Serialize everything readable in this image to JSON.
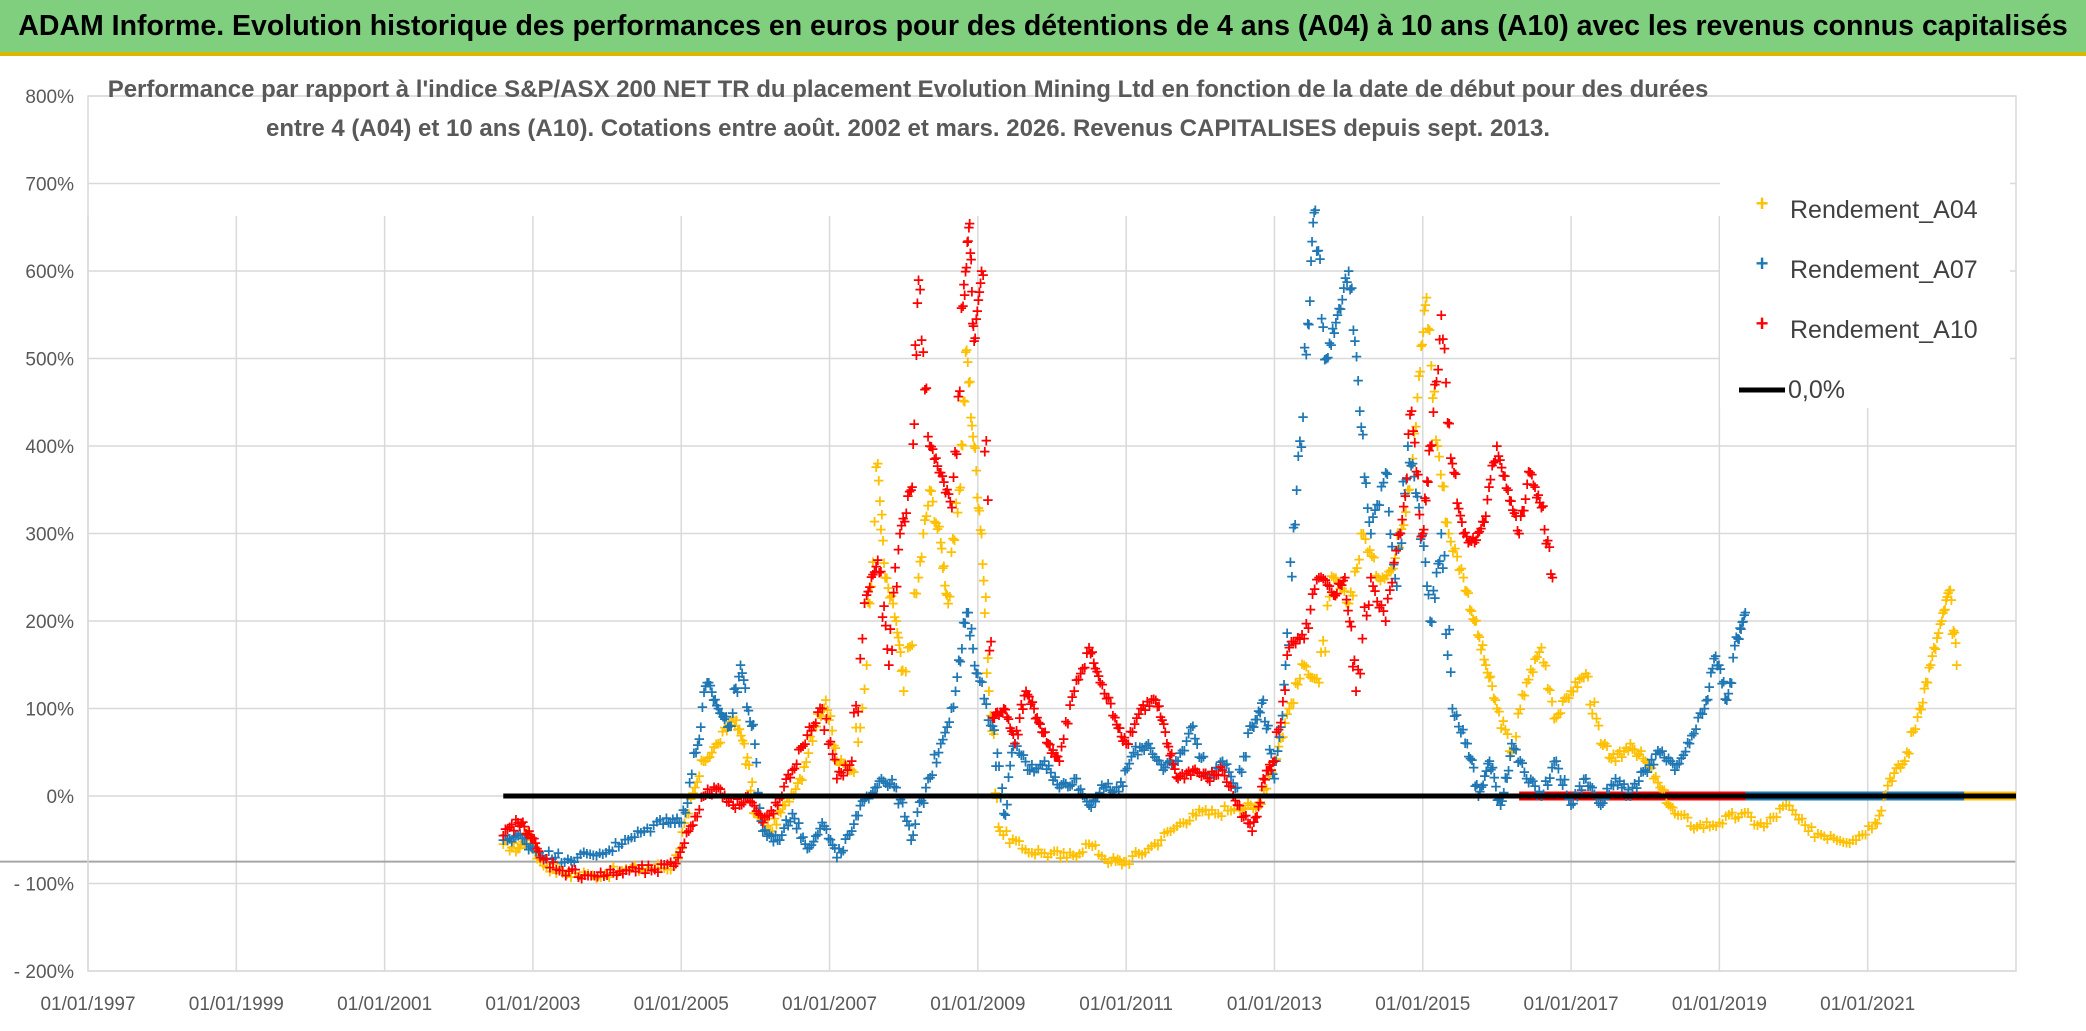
{
  "header": {
    "title": "ADAM Informe. Evolution historique des performances en euros pour des détentions de 4 ans (A04) à 10 ans (A10) avec les revenus connus capitalisés"
  },
  "colors": {
    "banner": "#7fcf7f",
    "banner_border": "#d8b800",
    "A04": "#ffc000",
    "A07": "#1f77b4",
    "A10": "#ff0000",
    "zero": "#000000",
    "grid": "#d9d9d9",
    "text": "#595959"
  },
  "chart_data": {
    "type": "scatter",
    "title_lines": [
      "Performance par rapport à l'indice S&P/ASX 200 NET TR  du placement Evolution Mining Ltd en fonction de la date de début pour des durées",
      "entre 4 (A04) et 10 ans (A10). Cotations entre août. 2002 et mars. 2026. Revenus CAPITALISES depuis sept. 2013."
    ],
    "xlabel": "",
    "ylabel": "",
    "ylim": [
      -200,
      800
    ],
    "xlim": [
      1997.0,
      2023.0
    ],
    "y_ticks": [
      {
        "value": 800,
        "label": "800%"
      },
      {
        "value": 700,
        "label": "700%"
      },
      {
        "value": 600,
        "label": "600%"
      },
      {
        "value": 500,
        "label": "500%"
      },
      {
        "value": 400,
        "label": "400%"
      },
      {
        "value": 300,
        "label": "300%"
      },
      {
        "value": 200,
        "label": "200%"
      },
      {
        "value": 100,
        "label": "100%"
      },
      {
        "value": 0,
        "label": "0%"
      },
      {
        "value": -100,
        "label": "- 100%"
      },
      {
        "value": -200,
        "label": "- 200%"
      }
    ],
    "x_ticks": [
      {
        "value": 1997,
        "label": "01/01/1997"
      },
      {
        "value": 1999,
        "label": "01/01/1999"
      },
      {
        "value": 2001,
        "label": "01/01/2001"
      },
      {
        "value": 2003,
        "label": "01/01/2003"
      },
      {
        "value": 2005,
        "label": "01/01/2005"
      },
      {
        "value": 2007,
        "label": "01/01/2007"
      },
      {
        "value": 2009,
        "label": "01/01/2009"
      },
      {
        "value": 2011,
        "label": "01/01/2011"
      },
      {
        "value": 2013,
        "label": "01/01/2013"
      },
      {
        "value": 2015,
        "label": "01/01/2015"
      },
      {
        "value": 2017,
        "label": "01/01/2017"
      },
      {
        "value": 2019,
        "label": "01/01/2019"
      },
      {
        "value": 2021,
        "label": "01/01/2021"
      }
    ],
    "legend_position": "top-right",
    "legend": [
      {
        "key": "A04",
        "label": "Rendement_A04",
        "kind": "marker"
      },
      {
        "key": "A07",
        "label": "Rendement_A07",
        "kind": "marker"
      },
      {
        "key": "A10",
        "label": "Rendement_A10",
        "kind": "marker"
      },
      {
        "key": "zero",
        "label": "0,0%",
        "kind": "line"
      }
    ],
    "reference_line": {
      "y": 0,
      "x_start": 2002.6,
      "x_end": 2023.0
    },
    "series": [
      {
        "key": "A04",
        "name": "Rendement_A04",
        "points": [
          [
            2002.6,
            -55
          ],
          [
            2002.8,
            -60
          ],
          [
            2002.95,
            -45
          ],
          [
            2003.1,
            -75
          ],
          [
            2003.4,
            -88
          ],
          [
            2003.8,
            -90
          ],
          [
            2004.2,
            -85
          ],
          [
            2004.6,
            -82
          ],
          [
            2004.9,
            -80
          ],
          [
            2005.1,
            -20
          ],
          [
            2005.3,
            40
          ],
          [
            2005.5,
            60
          ],
          [
            2005.7,
            90
          ],
          [
            2005.85,
            60
          ],
          [
            2006.0,
            -20
          ],
          [
            2006.2,
            -40
          ],
          [
            2006.4,
            -10
          ],
          [
            2006.6,
            20
          ],
          [
            2006.8,
            80
          ],
          [
            2006.95,
            110
          ],
          [
            2007.1,
            40
          ],
          [
            2007.3,
            30
          ],
          [
            2007.5,
            150
          ],
          [
            2007.65,
            380
          ],
          [
            2007.75,
            250
          ],
          [
            2007.9,
            200
          ],
          [
            2008.0,
            120
          ],
          [
            2008.2,
            250
          ],
          [
            2008.35,
            350
          ],
          [
            2008.5,
            290
          ],
          [
            2008.6,
            220
          ],
          [
            2008.75,
            350
          ],
          [
            2008.85,
            510
          ],
          [
            2008.95,
            400
          ],
          [
            2009.05,
            300
          ],
          [
            2009.15,
            120
          ],
          [
            2009.3,
            -40
          ],
          [
            2009.6,
            -60
          ],
          [
            2009.9,
            -65
          ],
          [
            2010.2,
            -70
          ],
          [
            2010.5,
            -55
          ],
          [
            2010.8,
            -75
          ],
          [
            2011.0,
            -75
          ],
          [
            2011.3,
            -60
          ],
          [
            2011.6,
            -40
          ],
          [
            2011.9,
            -20
          ],
          [
            2012.2,
            -20
          ],
          [
            2012.5,
            -10
          ],
          [
            2012.75,
            -15
          ],
          [
            2013.0,
            40
          ],
          [
            2013.2,
            100
          ],
          [
            2013.4,
            150
          ],
          [
            2013.6,
            130
          ],
          [
            2013.8,
            250
          ],
          [
            2014.0,
            220
          ],
          [
            2014.2,
            300
          ],
          [
            2014.4,
            250
          ],
          [
            2014.6,
            260
          ],
          [
            2014.8,
            350
          ],
          [
            2014.95,
            480
          ],
          [
            2015.05,
            570
          ],
          [
            2015.2,
            400
          ],
          [
            2015.35,
            300
          ],
          [
            2015.55,
            250
          ],
          [
            2015.7,
            200
          ],
          [
            2015.85,
            150
          ],
          [
            2016.0,
            100
          ],
          [
            2016.2,
            50
          ],
          [
            2016.4,
            130
          ],
          [
            2016.6,
            170
          ],
          [
            2016.8,
            90
          ],
          [
            2017.0,
            120
          ],
          [
            2017.2,
            140
          ],
          [
            2017.4,
            60
          ],
          [
            2017.6,
            40
          ],
          [
            2017.8,
            60
          ],
          [
            2018.0,
            40
          ],
          [
            2018.2,
            10
          ],
          [
            2018.4,
            -20
          ],
          [
            2018.7,
            -35
          ],
          [
            2019.0,
            -30
          ],
          [
            2019.3,
            -20
          ],
          [
            2019.6,
            -35
          ],
          [
            2019.9,
            -10
          ],
          [
            2020.2,
            -40
          ],
          [
            2020.5,
            -45
          ],
          [
            2020.8,
            -50
          ],
          [
            2021.1,
            -30
          ],
          [
            2021.3,
            20
          ],
          [
            2021.5,
            40
          ],
          [
            2021.7,
            100
          ],
          [
            2021.85,
            150
          ],
          [
            2022.0,
            200
          ],
          [
            2022.1,
            235
          ],
          [
            2022.2,
            150
          ]
        ]
      },
      {
        "key": "A07",
        "name": "Rendement_A07",
        "points": [
          [
            2002.6,
            -50
          ],
          [
            2002.8,
            -45
          ],
          [
            2003.0,
            -60
          ],
          [
            2003.3,
            -70
          ],
          [
            2003.6,
            -70
          ],
          [
            2003.9,
            -65
          ],
          [
            2004.2,
            -55
          ],
          [
            2004.5,
            -40
          ],
          [
            2004.8,
            -25
          ],
          [
            2005.0,
            -30
          ],
          [
            2005.2,
            50
          ],
          [
            2005.35,
            130
          ],
          [
            2005.5,
            100
          ],
          [
            2005.65,
            80
          ],
          [
            2005.8,
            150
          ],
          [
            2005.95,
            80
          ],
          [
            2006.1,
            -40
          ],
          [
            2006.3,
            -50
          ],
          [
            2006.5,
            -20
          ],
          [
            2006.7,
            -60
          ],
          [
            2006.9,
            -30
          ],
          [
            2007.1,
            -70
          ],
          [
            2007.3,
            -40
          ],
          [
            2007.5,
            0
          ],
          [
            2007.7,
            20
          ],
          [
            2007.9,
            10
          ],
          [
            2008.1,
            -50
          ],
          [
            2008.3,
            10
          ],
          [
            2008.5,
            60
          ],
          [
            2008.7,
            120
          ],
          [
            2008.85,
            210
          ],
          [
            2009.0,
            140
          ],
          [
            2009.2,
            80
          ],
          [
            2009.35,
            -20
          ],
          [
            2009.5,
            60
          ],
          [
            2009.7,
            30
          ],
          [
            2009.9,
            40
          ],
          [
            2010.1,
            10
          ],
          [
            2010.3,
            20
          ],
          [
            2010.5,
            -10
          ],
          [
            2010.7,
            10
          ],
          [
            2010.9,
            5
          ],
          [
            2011.1,
            50
          ],
          [
            2011.3,
            60
          ],
          [
            2011.5,
            30
          ],
          [
            2011.7,
            40
          ],
          [
            2011.9,
            80
          ],
          [
            2012.1,
            20
          ],
          [
            2012.3,
            40
          ],
          [
            2012.5,
            10
          ],
          [
            2012.7,
            80
          ],
          [
            2012.85,
            110
          ],
          [
            2013.0,
            20
          ],
          [
            2013.15,
            150
          ],
          [
            2013.3,
            350
          ],
          [
            2013.45,
            540
          ],
          [
            2013.55,
            670
          ],
          [
            2013.7,
            500
          ],
          [
            2013.85,
            550
          ],
          [
            2014.0,
            600
          ],
          [
            2014.15,
            440
          ],
          [
            2014.3,
            300
          ],
          [
            2014.5,
            370
          ],
          [
            2014.65,
            240
          ],
          [
            2014.8,
            400
          ],
          [
            2014.95,
            330
          ],
          [
            2015.1,
            200
          ],
          [
            2015.25,
            300
          ],
          [
            2015.4,
            100
          ],
          [
            2015.6,
            60
          ],
          [
            2015.75,
            0
          ],
          [
            2015.9,
            40
          ],
          [
            2016.05,
            -10
          ],
          [
            2016.2,
            60
          ],
          [
            2016.4,
            20
          ],
          [
            2016.6,
            0
          ],
          [
            2016.8,
            40
          ],
          [
            2017.0,
            -10
          ],
          [
            2017.2,
            20
          ],
          [
            2017.4,
            -10
          ],
          [
            2017.6,
            20
          ],
          [
            2017.8,
            0
          ],
          [
            2018.0,
            30
          ],
          [
            2018.2,
            50
          ],
          [
            2018.4,
            30
          ],
          [
            2018.6,
            60
          ],
          [
            2018.8,
            100
          ],
          [
            2018.95,
            160
          ],
          [
            2019.1,
            110
          ],
          [
            2019.25,
            180
          ],
          [
            2019.35,
            210
          ]
        ]
      },
      {
        "key": "A10",
        "name": "Rendement_A10",
        "points": [
          [
            2002.6,
            -45
          ],
          [
            2002.8,
            -30
          ],
          [
            2002.95,
            -40
          ],
          [
            2003.1,
            -70
          ],
          [
            2003.4,
            -85
          ],
          [
            2003.7,
            -90
          ],
          [
            2004.0,
            -90
          ],
          [
            2004.3,
            -85
          ],
          [
            2004.6,
            -85
          ],
          [
            2004.9,
            -80
          ],
          [
            2005.1,
            -40
          ],
          [
            2005.3,
            0
          ],
          [
            2005.5,
            10
          ],
          [
            2005.7,
            -10
          ],
          [
            2005.9,
            0
          ],
          [
            2006.1,
            -30
          ],
          [
            2006.3,
            -10
          ],
          [
            2006.5,
            30
          ],
          [
            2006.7,
            70
          ],
          [
            2006.9,
            100
          ],
          [
            2007.1,
            20
          ],
          [
            2007.3,
            40
          ],
          [
            2007.5,
            230
          ],
          [
            2007.65,
            270
          ],
          [
            2007.8,
            150
          ],
          [
            2007.95,
            300
          ],
          [
            2008.1,
            350
          ],
          [
            2008.2,
            590
          ],
          [
            2008.35,
            400
          ],
          [
            2008.5,
            370
          ],
          [
            2008.65,
            330
          ],
          [
            2008.8,
            560
          ],
          [
            2008.88,
            650
          ],
          [
            2008.95,
            520
          ],
          [
            2009.05,
            600
          ],
          [
            2009.2,
            90
          ],
          [
            2009.35,
            100
          ],
          [
            2009.5,
            60
          ],
          [
            2009.65,
            120
          ],
          [
            2009.8,
            90
          ],
          [
            2009.95,
            60
          ],
          [
            2010.1,
            40
          ],
          [
            2010.3,
            120
          ],
          [
            2010.5,
            170
          ],
          [
            2010.65,
            130
          ],
          [
            2010.85,
            90
          ],
          [
            2011.0,
            60
          ],
          [
            2011.2,
            100
          ],
          [
            2011.4,
            110
          ],
          [
            2011.55,
            60
          ],
          [
            2011.7,
            20
          ],
          [
            2011.9,
            30
          ],
          [
            2012.1,
            20
          ],
          [
            2012.3,
            30
          ],
          [
            2012.5,
            -10
          ],
          [
            2012.7,
            -40
          ],
          [
            2012.85,
            20
          ],
          [
            2013.0,
            40
          ],
          [
            2013.2,
            170
          ],
          [
            2013.4,
            180
          ],
          [
            2013.6,
            250
          ],
          [
            2013.8,
            230
          ],
          [
            2013.95,
            250
          ],
          [
            2014.1,
            120
          ],
          [
            2014.3,
            250
          ],
          [
            2014.5,
            200
          ],
          [
            2014.7,
            300
          ],
          [
            2014.85,
            440
          ],
          [
            2015.0,
            300
          ],
          [
            2015.1,
            400
          ],
          [
            2015.25,
            550
          ],
          [
            2015.4,
            380
          ],
          [
            2015.55,
            300
          ],
          [
            2015.7,
            290
          ],
          [
            2015.85,
            320
          ],
          [
            2016.0,
            400
          ],
          [
            2016.15,
            350
          ],
          [
            2016.3,
            300
          ],
          [
            2016.45,
            370
          ],
          [
            2016.6,
            330
          ],
          [
            2016.75,
            250
          ]
        ]
      }
    ],
    "zero_runs": [
      {
        "key": "A10",
        "x_start": 2016.3,
        "x_end": 2023.0,
        "y": 0
      },
      {
        "key": "A07",
        "x_start": 2019.35,
        "x_end": 2023.0,
        "y": 0
      },
      {
        "key": "A04",
        "x_start": 2022.3,
        "x_end": 2023.0,
        "y": 0
      }
    ]
  }
}
